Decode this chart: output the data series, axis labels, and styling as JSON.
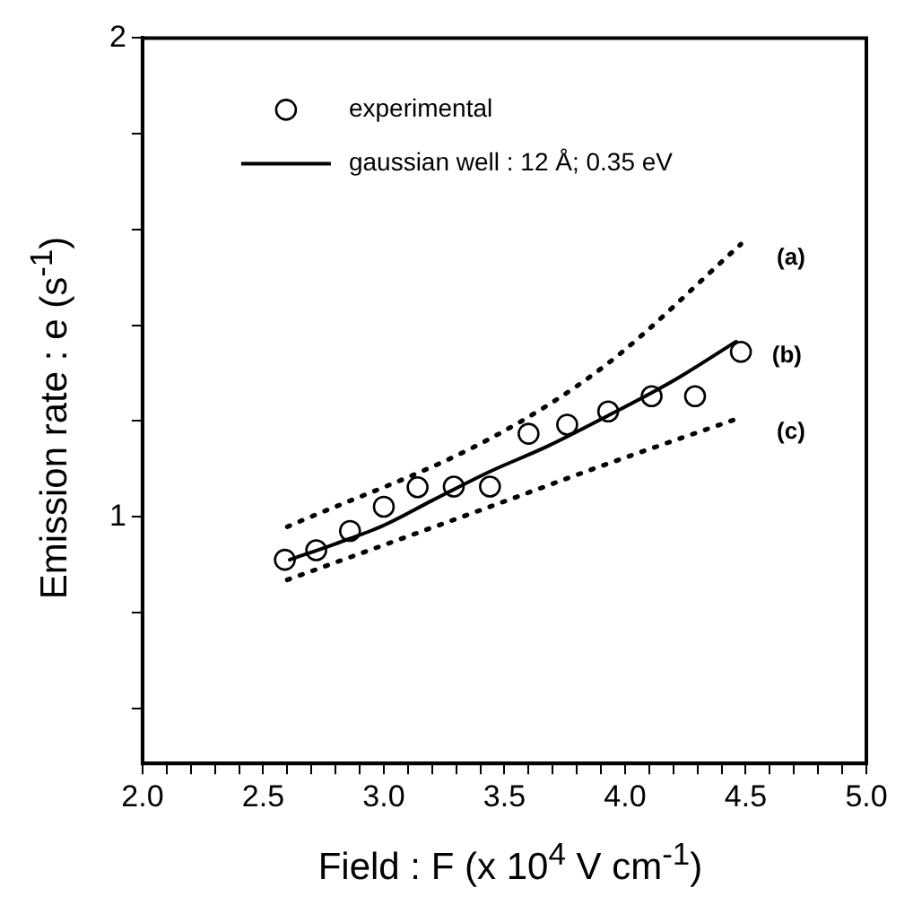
{
  "chart_data": {
    "type": "line",
    "xlabel": "Field : F (x 10$^{4}$ V cm$^{-1}$)",
    "ylabel": "Emission rate : e (s$^{-1}$)",
    "log": "y",
    "xlim": [
      2,
      5
    ],
    "ylim": [
      0.7,
      2
    ],
    "xticks": [
      {
        "value": 2,
        "label": "2.0"
      },
      {
        "value": 2.1,
        "label": null
      },
      {
        "value": 2.2,
        "label": null
      },
      {
        "value": 2.3,
        "label": null
      },
      {
        "value": 2.4,
        "label": null
      },
      {
        "value": 2.5,
        "label": "2.5"
      },
      {
        "value": 2.6,
        "label": null
      },
      {
        "value": 2.7,
        "label": null
      },
      {
        "value": 2.8,
        "label": null
      },
      {
        "value": 2.9,
        "label": null
      },
      {
        "value": 3,
        "label": "3.0"
      },
      {
        "value": 3.1,
        "label": null
      },
      {
        "value": 3.2,
        "label": null
      },
      {
        "value": 3.3,
        "label": null
      },
      {
        "value": 3.4,
        "label": null
      },
      {
        "value": 3.5,
        "label": "3.5"
      },
      {
        "value": 3.6,
        "label": null
      },
      {
        "value": 3.7,
        "label": null
      },
      {
        "value": 3.8,
        "label": null
      },
      {
        "value": 3.9,
        "label": null
      },
      {
        "value": 4,
        "label": "4.0"
      },
      {
        "value": 4.1,
        "label": null
      },
      {
        "value": 4.2,
        "label": null
      },
      {
        "value": 4.3,
        "label": null
      },
      {
        "value": 4.4,
        "label": null
      },
      {
        "value": 4.5,
        "label": "4.5"
      },
      {
        "value": 4.6,
        "label": null
      },
      {
        "value": 4.7,
        "label": null
      },
      {
        "value": 4.8,
        "label": null
      },
      {
        "value": 4.9,
        "label": null
      },
      {
        "value": 5,
        "label": "5.0"
      }
    ],
    "yticks": [
      {
        "value": 0.758,
        "label": null
      },
      {
        "value": 0.871,
        "label": null
      },
      1,
      {
        "value": 1.149,
        "label": null
      },
      {
        "value": 1.32,
        "label": null
      },
      {
        "value": 1.516,
        "label": null
      },
      {
        "value": 1.741,
        "label": null
      },
      2
    ],
    "grid": false,
    "legend": "top left",
    "annotations": [
      "(a)",
      "(b)",
      "(c)"
    ],
    "series": [
      {
        "name": "experimental",
        "type": "scatter",
        "color": "#000000",
        "marker": "circle",
        "x": [
          2.59,
          2.72,
          2.86,
          3.0,
          3.14,
          3.29,
          3.44,
          3.6,
          3.76,
          3.93,
          4.11,
          4.29,
          4.48
        ],
        "values": [
          0.94,
          0.953,
          0.98,
          1.015,
          1.044,
          1.045,
          1.045,
          1.128,
          1.143,
          1.165,
          1.191,
          1.191,
          1.27
        ]
      },
      {
        "color": "#000000",
        "line_style": "dotted",
        "x": [
          2.6,
          3.44,
          3.92,
          4.48
        ],
        "values": [
          0.986,
          1.12,
          1.246,
          1.484
        ]
      },
      {
        "name": "gaussian well : 12 Å; 0.35 eV",
        "color": "#000000",
        "line_style": "solid",
        "x": [
          2.61,
          2.8,
          3.0,
          3.2,
          3.44,
          3.68,
          3.92,
          4.2,
          4.46
        ],
        "values": [
          0.94,
          0.962,
          0.988,
          1.024,
          1.068,
          1.108,
          1.156,
          1.218,
          1.289
        ]
      },
      {
        "color": "#000000",
        "line_style": "dotted",
        "x": [
          2.6,
          3.44,
          3.92,
          4.48
        ],
        "values": [
          0.913,
          1.015,
          1.079,
          1.155
        ]
      }
    ]
  }
}
